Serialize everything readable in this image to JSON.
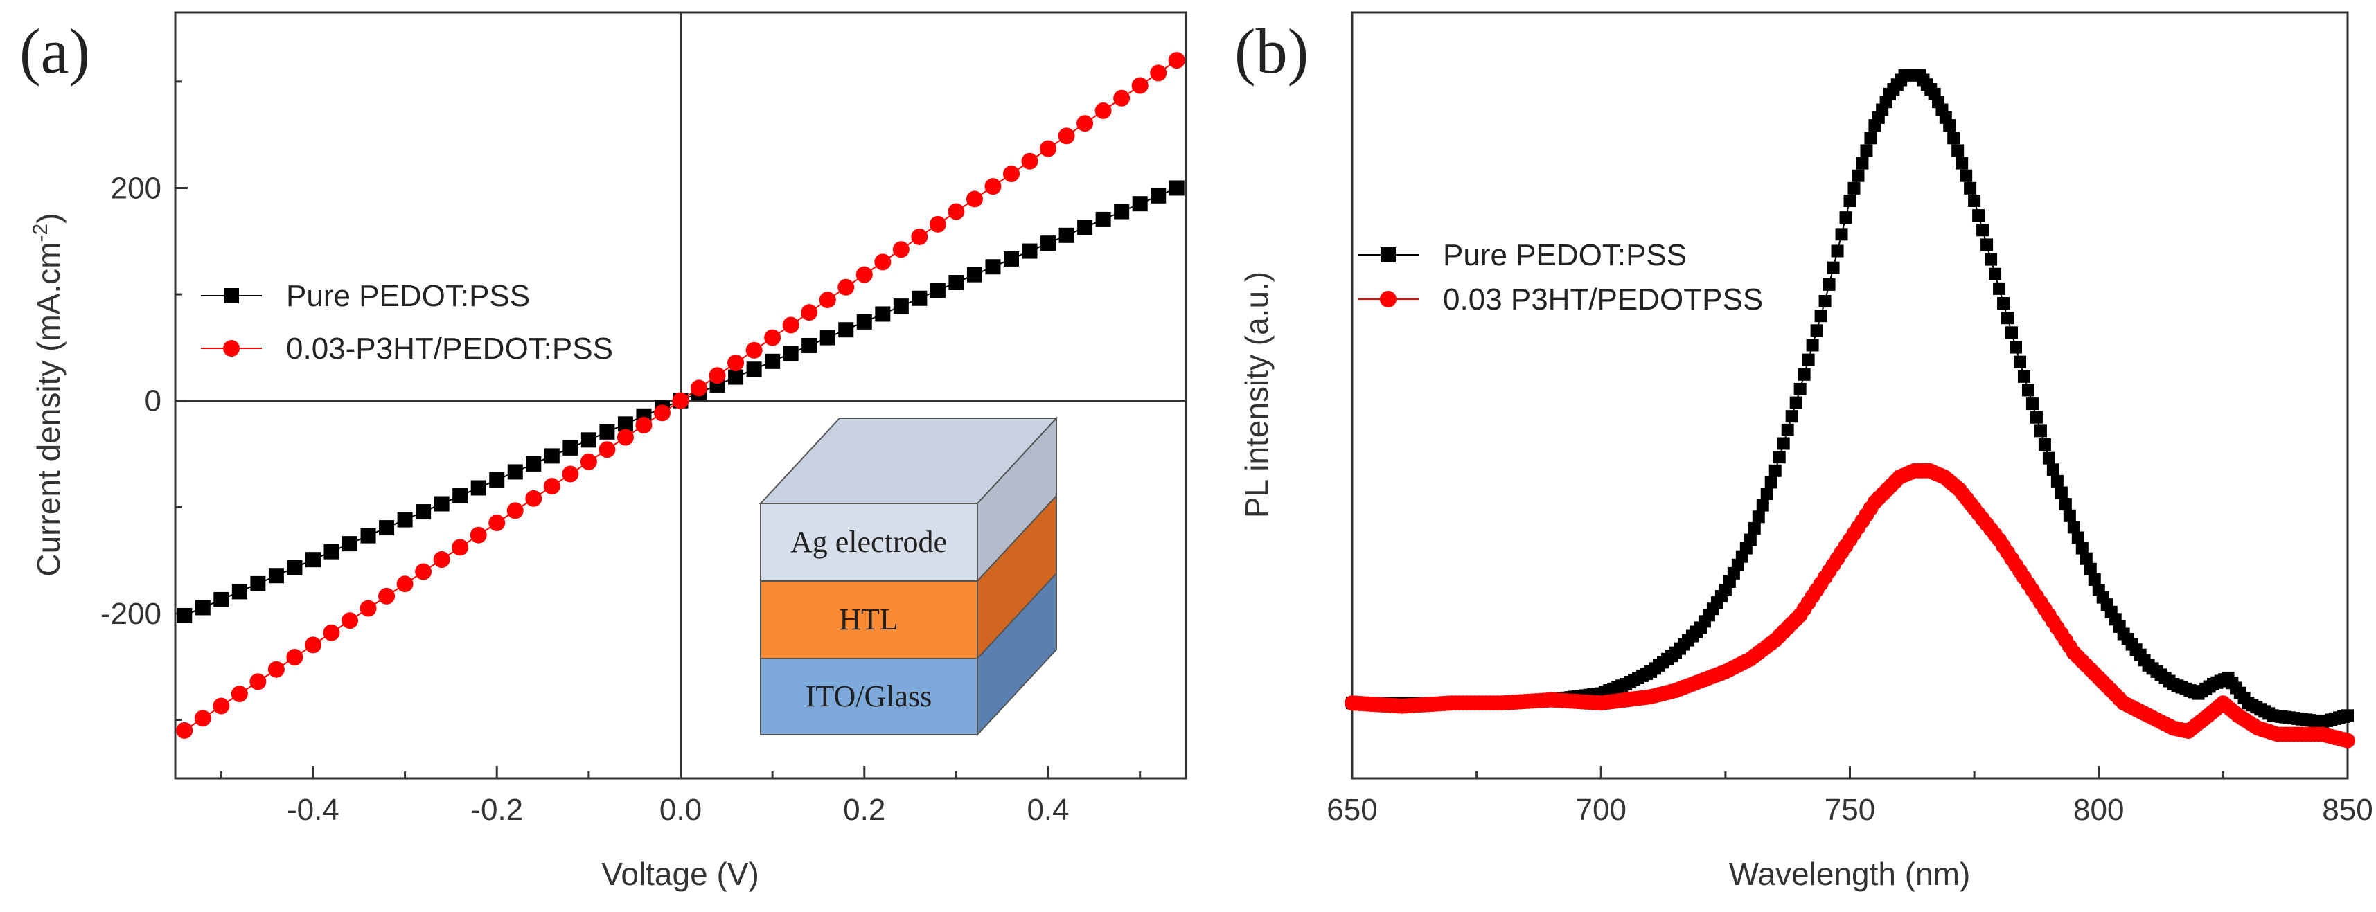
{
  "colors": {
    "series_black": "#000000",
    "series_red": "#ff0000",
    "axis": "#333333",
    "inset_ag_front": "#d6dee9",
    "inset_ag_side": "#b4bccb",
    "inset_ag_top": "#c7d1e0",
    "inset_htl_front": "#fb8a35",
    "inset_htl_side": "#d0661f",
    "inset_ito_front": "#7ea9db",
    "inset_ito_side": "#5a7fb1"
  },
  "chart_data": [
    {
      "panel": "(a)",
      "type": "scatter",
      "title": "",
      "xlabel": "Voltage (V)",
      "ylabel_main": "Current density (mA.cm",
      "ylabel_sup": "-2",
      "ylabel_end": ")",
      "xlim": [
        -0.55,
        0.55
      ],
      "ylim": [
        -355,
        365
      ],
      "xticks": [
        -0.4,
        -0.2,
        0.0,
        0.2,
        0.4
      ],
      "xtick_labels": [
        "-0.4",
        "-0.2",
        "0.0",
        "0.2",
        "0.4"
      ],
      "yticks": [
        -200,
        0,
        200
      ],
      "ytick_labels": [
        "-200",
        "0",
        "200"
      ],
      "grid": false,
      "legend_position": "left-middle",
      "series": [
        {
          "name": "Pure PEDOT:PSS",
          "marker": "square",
          "color": "#000000",
          "x": [
            -0.54,
            -0.52,
            -0.5,
            -0.48,
            -0.46,
            -0.44,
            -0.42,
            -0.4,
            -0.38,
            -0.36,
            -0.34,
            -0.32,
            -0.3,
            -0.28,
            -0.26,
            -0.24,
            -0.22,
            -0.2,
            -0.18,
            -0.16,
            -0.14,
            -0.12,
            -0.1,
            -0.08,
            -0.06,
            -0.04,
            -0.02,
            0.0,
            0.02,
            0.04,
            0.06,
            0.08,
            0.1,
            0.12,
            0.14,
            0.16,
            0.18,
            0.2,
            0.22,
            0.24,
            0.26,
            0.28,
            0.3,
            0.32,
            0.34,
            0.36,
            0.38,
            0.4,
            0.42,
            0.44,
            0.46,
            0.48,
            0.5,
            0.52,
            0.54
          ],
          "y": [
            -202,
            -194.5,
            -187,
            -179.5,
            -172,
            -164.4,
            -156.9,
            -149.4,
            -141.9,
            -134.4,
            -126.9,
            -119.4,
            -111.9,
            -104.4,
            -96.9,
            -89.4,
            -81.9,
            -74.4,
            -66.9,
            -59.4,
            -51.9,
            -44.4,
            -36.9,
            -29.4,
            -21.9,
            -14.4,
            -6.9,
            0.0,
            7.4,
            14.8,
            22.2,
            29.6,
            37.0,
            44.4,
            51.9,
            59.3,
            66.7,
            74.1,
            81.5,
            88.9,
            96.3,
            103.7,
            111.1,
            118.5,
            125.9,
            133.3,
            140.7,
            148.1,
            155.5,
            163.0,
            170.4,
            177.8,
            185.2,
            192.6,
            200.0
          ]
        },
        {
          "name": "0.03-P3HT/PEDOT:PSS",
          "marker": "circle",
          "color": "#ff0000",
          "x": [
            -0.54,
            -0.52,
            -0.5,
            -0.48,
            -0.46,
            -0.44,
            -0.42,
            -0.4,
            -0.38,
            -0.36,
            -0.34,
            -0.32,
            -0.3,
            -0.28,
            -0.26,
            -0.24,
            -0.22,
            -0.2,
            -0.18,
            -0.16,
            -0.14,
            -0.12,
            -0.1,
            -0.08,
            -0.06,
            -0.04,
            -0.02,
            0.0,
            0.02,
            0.04,
            0.06,
            0.08,
            0.1,
            0.12,
            0.14,
            0.16,
            0.18,
            0.2,
            0.22,
            0.24,
            0.26,
            0.28,
            0.3,
            0.32,
            0.34,
            0.36,
            0.38,
            0.4,
            0.42,
            0.44,
            0.46,
            0.48,
            0.5,
            0.52,
            0.54
          ],
          "y": [
            -310,
            -298.5,
            -287,
            -275.6,
            -264.1,
            -252.6,
            -241.1,
            -229.6,
            -218.1,
            -206.7,
            -195.2,
            -183.7,
            -172.2,
            -160.7,
            -149.3,
            -137.8,
            -126.3,
            -114.8,
            -103.3,
            -91.9,
            -80.4,
            -68.9,
            -57.4,
            -45.9,
            -34.4,
            -23.0,
            -11.5,
            0.0,
            11.9,
            23.7,
            35.6,
            47.4,
            59.3,
            71.1,
            83.0,
            94.8,
            106.7,
            118.5,
            130.4,
            142.2,
            154.1,
            165.9,
            177.8,
            189.6,
            201.5,
            213.3,
            225.2,
            237.0,
            248.9,
            260.7,
            272.6,
            284.4,
            296.3,
            308.1,
            320.0
          ]
        }
      ],
      "inset": {
        "layers": [
          "Ag electrode",
          "HTL",
          "ITO/Glass"
        ]
      }
    },
    {
      "panel": "(b)",
      "type": "scatter",
      "title": "",
      "xlabel": "Wavelength (nm)",
      "ylabel": "PL intensity (a.u.)",
      "xlim": [
        650,
        850
      ],
      "ylim": [
        -0.12,
        1.1
      ],
      "xticks": [
        650,
        700,
        750,
        800,
        850
      ],
      "xtick_labels": [
        "650",
        "700",
        "750",
        "800",
        "850"
      ],
      "yticks": [],
      "grid": false,
      "legend_position": "left-upper",
      "series": [
        {
          "name": "Pure PEDOT:PSS",
          "marker": "square",
          "color": "#000000",
          "x": [
            650,
            660,
            670,
            680,
            690,
            700,
            705,
            710,
            715,
            720,
            725,
            730,
            735,
            740,
            745,
            750,
            755,
            758,
            761,
            764,
            767,
            770,
            775,
            780,
            785,
            790,
            795,
            800,
            805,
            810,
            815,
            820,
            823,
            826,
            830,
            835,
            840,
            845,
            850
          ],
          "x_note": "",
          "y": [
            0.0,
            0.0,
            0.0,
            0.0,
            0.005,
            0.015,
            0.03,
            0.05,
            0.08,
            0.12,
            0.18,
            0.26,
            0.37,
            0.5,
            0.64,
            0.8,
            0.92,
            0.97,
            1.0,
            1.0,
            0.97,
            0.92,
            0.8,
            0.66,
            0.52,
            0.39,
            0.28,
            0.18,
            0.11,
            0.06,
            0.03,
            0.015,
            0.03,
            0.04,
            0.0,
            -0.02,
            -0.025,
            -0.03,
            -0.02
          ]
        },
        {
          "name": "0.03 P3HT/PEDOTPSS",
          "marker": "circle",
          "color": "#ff0000",
          "x": [
            650,
            660,
            670,
            680,
            690,
            700,
            710,
            715,
            720,
            725,
            730,
            735,
            740,
            745,
            750,
            755,
            760,
            763,
            766,
            769,
            772,
            775,
            780,
            785,
            790,
            795,
            800,
            805,
            810,
            815,
            818,
            822,
            825,
            828,
            832,
            836,
            840,
            845,
            850
          ],
          "y": [
            0.0,
            -0.005,
            0.0,
            0.0,
            0.005,
            0.0,
            0.01,
            0.02,
            0.035,
            0.05,
            0.07,
            0.1,
            0.14,
            0.2,
            0.26,
            0.32,
            0.36,
            0.37,
            0.37,
            0.36,
            0.34,
            0.31,
            0.26,
            0.2,
            0.14,
            0.08,
            0.04,
            0.0,
            -0.02,
            -0.04,
            -0.045,
            -0.02,
            0.0,
            -0.02,
            -0.04,
            -0.05,
            -0.05,
            -0.05,
            -0.06
          ]
        }
      ]
    }
  ]
}
